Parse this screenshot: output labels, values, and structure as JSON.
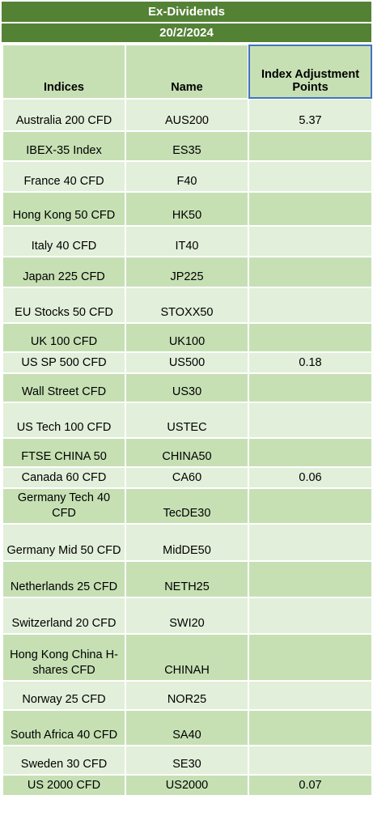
{
  "header": {
    "title": "Ex-Dividends",
    "date": "20/2/2024"
  },
  "columns": [
    "Indices",
    "Name",
    "Index Adjustment Points"
  ],
  "rows": [
    {
      "index": "Australia 200 CFD",
      "name": "AUS200",
      "points": "5.37"
    },
    {
      "index": "IBEX-35 Index",
      "name": "ES35",
      "points": ""
    },
    {
      "index": "France 40 CFD",
      "name": "F40",
      "points": ""
    },
    {
      "index": "Hong Kong 50 CFD",
      "name": "HK50",
      "points": ""
    },
    {
      "index": "Italy 40 CFD",
      "name": "IT40",
      "points": ""
    },
    {
      "index": "Japan 225 CFD",
      "name": "JP225",
      "points": ""
    },
    {
      "index": "EU Stocks 50 CFD",
      "name": "STOXX50",
      "points": ""
    },
    {
      "index": "UK 100 CFD",
      "name": "UK100",
      "points": ""
    },
    {
      "index": "US SP 500 CFD",
      "name": "US500",
      "points": "0.18"
    },
    {
      "index": "Wall Street CFD",
      "name": "US30",
      "points": ""
    },
    {
      "index": "US Tech 100 CFD",
      "name": "USTEC",
      "points": ""
    },
    {
      "index": "FTSE CHINA 50",
      "name": "CHINA50",
      "points": ""
    },
    {
      "index": "Canada 60 CFD",
      "name": "CA60",
      "points": "0.06"
    },
    {
      "index": "Germany Tech 40 CFD",
      "name": "TecDE30",
      "points": ""
    },
    {
      "index": "Germany Mid 50 CFD",
      "name": "MidDE50",
      "points": ""
    },
    {
      "index": "Netherlands 25 CFD",
      "name": "NETH25",
      "points": ""
    },
    {
      "index": "Switzerland 20 CFD",
      "name": "SWI20",
      "points": ""
    },
    {
      "index": "Hong Kong China H-shares CFD",
      "name": "CHINAH",
      "points": ""
    },
    {
      "index": "Norway 25 CFD",
      "name": "NOR25",
      "points": ""
    },
    {
      "index": "South Africa 40 CFD",
      "name": "SA40",
      "points": ""
    },
    {
      "index": "Sweden 30 CFD",
      "name": "SE30",
      "points": ""
    },
    {
      "index": "US 2000 CFD",
      "name": "US2000",
      "points": "0.07"
    }
  ],
  "colors": {
    "header_bar": "#548235",
    "row_dark": "#c6e0b4",
    "row_light": "#e2efda",
    "selection": "#4472c4"
  }
}
